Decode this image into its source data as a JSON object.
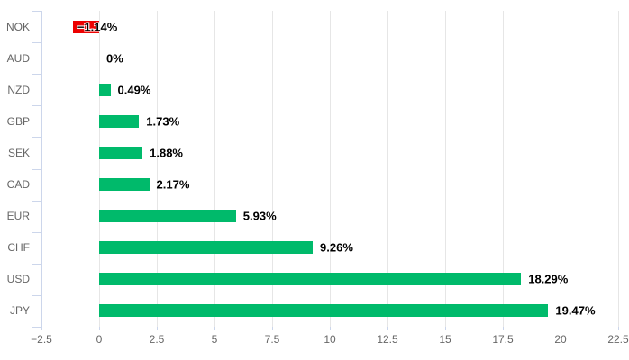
{
  "chart_data": {
    "type": "bar",
    "orientation": "horizontal",
    "title": "",
    "xlabel": "",
    "ylabel": "",
    "categories": [
      "NOK",
      "AUD",
      "NZD",
      "GBP",
      "SEK",
      "CAD",
      "EUR",
      "CHF",
      "USD",
      "JPY"
    ],
    "values": [
      -1.14,
      0,
      0.49,
      1.73,
      1.88,
      2.17,
      5.93,
      9.26,
      18.29,
      19.47
    ],
    "value_labels": [
      "−1.14%",
      "0%",
      "0.49%",
      "1.73%",
      "1.88%",
      "2.17%",
      "5.93%",
      "9.26%",
      "18.29%",
      "19.47%"
    ],
    "xlim": [
      -2.5,
      22.5
    ],
    "x_tick_step": 2.5,
    "x_tick_labels": [
      "−2.5",
      "0",
      "2.5",
      "5",
      "7.5",
      "10",
      "12.5",
      "15",
      "17.5",
      "20",
      "22.5"
    ],
    "grid": true,
    "legend": "none",
    "colors": {
      "positive_bar": "#00ba6b",
      "negative_bar": "#ec0000",
      "gridline": "#e6e6e6",
      "axis_line": "#ccd6eb",
      "axis_label": "#666666",
      "value_label": "#000000",
      "background": "#ffffff"
    }
  }
}
